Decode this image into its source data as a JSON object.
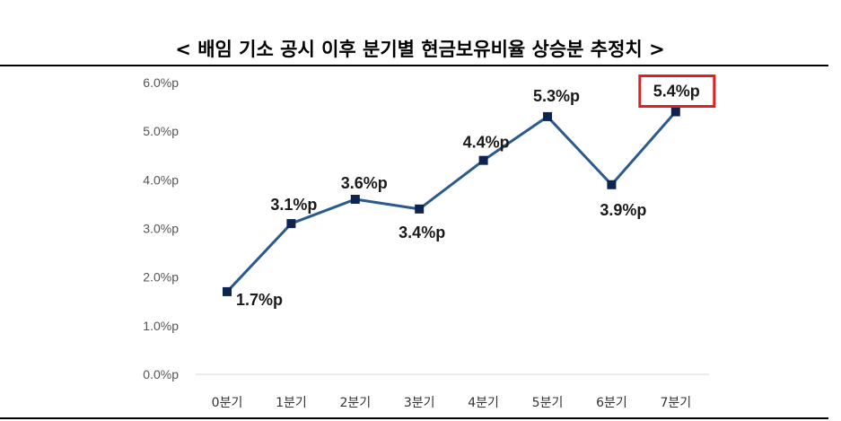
{
  "chart_data": {
    "type": "line",
    "title": "< 배임 기소 공시 이후 분기별 현금보유비율 상승분 추정치 >",
    "xlabel": "",
    "ylabel": "",
    "categories": [
      "0분기",
      "1분기",
      "2분기",
      "3분기",
      "4분기",
      "5분기",
      "6분기",
      "7분기"
    ],
    "series": [
      {
        "values": [
          1.7,
          3.1,
          3.6,
          3.4,
          4.4,
          5.3,
          3.9,
          5.4
        ]
      }
    ],
    "data_labels": [
      "1.7%p",
      "3.1%p",
      "3.6%p",
      "3.4%p",
      "4.4%p",
      "5.3%p",
      "3.9%p",
      "5.4%p"
    ],
    "highlighted_label_index": 7,
    "ylim": [
      0,
      6
    ],
    "yticks": [
      0,
      1,
      2,
      3,
      4,
      5,
      6
    ],
    "ytick_labels": [
      "0.0%p",
      "1.0%p",
      "2.0%p",
      "3.0%p",
      "4.0%p",
      "5.0%p",
      "6.0%p"
    ],
    "grid": false,
    "legend": "none",
    "colors": {
      "line": "#2b5a8c",
      "marker": "#0d2350",
      "highlight_border": "#e02020",
      "rule": "#000000"
    }
  }
}
